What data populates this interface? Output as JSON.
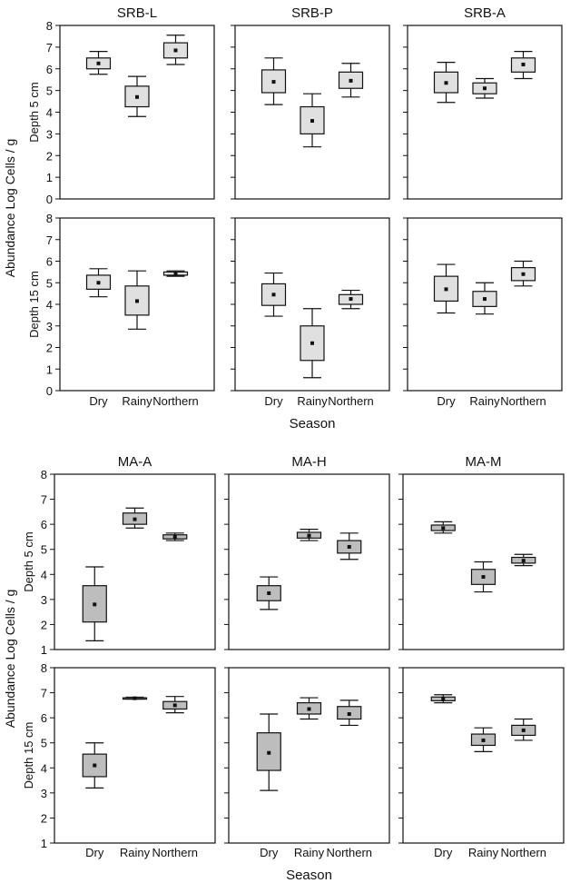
{
  "colors": {
    "box_fill_top": "#e0e0e0",
    "box_fill_bottom": "#bdbdbd",
    "stroke": "#111111",
    "background": "#ffffff"
  },
  "chart_data": [
    {
      "type": "box",
      "block": "top",
      "ylabel": "Abundance Log Cells / g",
      "xlabel": "Season",
      "ylim": [
        0,
        8
      ],
      "yticks": [
        "0",
        "1",
        "2",
        "3",
        "4",
        "5",
        "6",
        "7",
        "8"
      ],
      "categories": [
        "Dry",
        "Rainy",
        "Northern"
      ],
      "columns": [
        "SRB-L",
        "SRB-P",
        "SRB-A"
      ],
      "rows": [
        "Depth 5 cm",
        "Depth 15 cm"
      ],
      "panels": [
        {
          "title": "SRB-L",
          "row": "Depth 5 cm",
          "boxes": [
            {
              "category": "Dry",
              "whisker_low": 5.75,
              "q1": 6.0,
              "mean": 6.25,
              "q3": 6.5,
              "whisker_high": 6.8
            },
            {
              "category": "Rainy",
              "whisker_low": 3.8,
              "q1": 4.25,
              "mean": 4.7,
              "q3": 5.2,
              "whisker_high": 5.65
            },
            {
              "category": "Northern",
              "whisker_low": 6.2,
              "q1": 6.5,
              "mean": 6.85,
              "q3": 7.2,
              "whisker_high": 7.55
            }
          ]
        },
        {
          "title": "SRB-P",
          "row": "Depth 5 cm",
          "boxes": [
            {
              "category": "Dry",
              "whisker_low": 4.35,
              "q1": 4.9,
              "mean": 5.4,
              "q3": 5.95,
              "whisker_high": 6.5
            },
            {
              "category": "Rainy",
              "whisker_low": 2.4,
              "q1": 3.0,
              "mean": 3.6,
              "q3": 4.25,
              "whisker_high": 4.85
            },
            {
              "category": "Northern",
              "whisker_low": 4.7,
              "q1": 5.1,
              "mean": 5.45,
              "q3": 5.85,
              "whisker_high": 6.25
            }
          ]
        },
        {
          "title": "SRB-A",
          "row": "Depth 5 cm",
          "boxes": [
            {
              "category": "Dry",
              "whisker_low": 4.45,
              "q1": 4.9,
              "mean": 5.35,
              "q3": 5.85,
              "whisker_high": 6.3
            },
            {
              "category": "Rainy",
              "whisker_low": 4.65,
              "q1": 4.85,
              "mean": 5.1,
              "q3": 5.35,
              "whisker_high": 5.55
            },
            {
              "category": "Northern",
              "whisker_low": 5.55,
              "q1": 5.85,
              "mean": 6.2,
              "q3": 6.5,
              "whisker_high": 6.8
            }
          ]
        },
        {
          "title": "SRB-L",
          "row": "Depth 15 cm",
          "boxes": [
            {
              "category": "Dry",
              "whisker_low": 4.35,
              "q1": 4.7,
              "mean": 5.0,
              "q3": 5.35,
              "whisker_high": 5.65
            },
            {
              "category": "Rainy",
              "whisker_low": 2.85,
              "q1": 3.5,
              "mean": 4.15,
              "q3": 4.85,
              "whisker_high": 5.55
            },
            {
              "category": "Northern",
              "whisker_low": 5.3,
              "q1": 5.35,
              "mean": 5.42,
              "q3": 5.5,
              "whisker_high": 5.55
            }
          ]
        },
        {
          "title": "SRB-P",
          "row": "Depth 15 cm",
          "boxes": [
            {
              "category": "Dry",
              "whisker_low": 3.45,
              "q1": 3.95,
              "mean": 4.45,
              "q3": 4.95,
              "whisker_high": 5.45
            },
            {
              "category": "Rainy",
              "whisker_low": 0.6,
              "q1": 1.4,
              "mean": 2.2,
              "q3": 3.0,
              "whisker_high": 3.8
            },
            {
              "category": "Northern",
              "whisker_low": 3.8,
              "q1": 4.0,
              "mean": 4.25,
              "q3": 4.45,
              "whisker_high": 4.65
            }
          ]
        },
        {
          "title": "SRB-A",
          "row": "Depth 15 cm",
          "boxes": [
            {
              "category": "Dry",
              "whisker_low": 3.6,
              "q1": 4.15,
              "mean": 4.7,
              "q3": 5.3,
              "whisker_high": 5.85
            },
            {
              "category": "Rainy",
              "whisker_low": 3.55,
              "q1": 3.9,
              "mean": 4.25,
              "q3": 4.6,
              "whisker_high": 5.0
            },
            {
              "category": "Northern",
              "whisker_low": 4.85,
              "q1": 5.1,
              "mean": 5.4,
              "q3": 5.7,
              "whisker_high": 6.0
            }
          ]
        }
      ]
    },
    {
      "type": "box",
      "block": "bottom",
      "ylabel": "Abundance Log Cells / g",
      "xlabel": "Season",
      "ylim": [
        1,
        8
      ],
      "yticks": [
        "1",
        "2",
        "3",
        "4",
        "5",
        "6",
        "7",
        "8"
      ],
      "categories": [
        "Dry",
        "Rainy",
        "Northern"
      ],
      "columns": [
        "MA-A",
        "MA-H",
        "MA-M"
      ],
      "rows": [
        "Depth 5 cm",
        "Depth 15 cm"
      ],
      "panels": [
        {
          "title": "MA-A",
          "row": "Depth 5 cm",
          "boxes": [
            {
              "category": "Dry",
              "whisker_low": 1.35,
              "q1": 2.1,
              "mean": 2.8,
              "q3": 3.55,
              "whisker_high": 4.3
            },
            {
              "category": "Rainy",
              "whisker_low": 5.85,
              "q1": 6.0,
              "mean": 6.2,
              "q3": 6.45,
              "whisker_high": 6.65
            },
            {
              "category": "Northern",
              "whisker_low": 5.35,
              "q1": 5.42,
              "mean": 5.5,
              "q3": 5.58,
              "whisker_high": 5.65
            }
          ]
        },
        {
          "title": "MA-H",
          "row": "Depth 5 cm",
          "boxes": [
            {
              "category": "Dry",
              "whisker_low": 2.6,
              "q1": 2.95,
              "mean": 3.25,
              "q3": 3.55,
              "whisker_high": 3.9
            },
            {
              "category": "Rainy",
              "whisker_low": 5.35,
              "q1": 5.45,
              "mean": 5.55,
              "q3": 5.68,
              "whisker_high": 5.8
            },
            {
              "category": "Northern",
              "whisker_low": 4.6,
              "q1": 4.85,
              "mean": 5.1,
              "q3": 5.35,
              "whisker_high": 5.65
            }
          ]
        },
        {
          "title": "MA-M",
          "row": "Depth 5 cm",
          "boxes": [
            {
              "category": "Dry",
              "whisker_low": 5.65,
              "q1": 5.75,
              "mean": 5.85,
              "q3": 5.97,
              "whisker_high": 6.1
            },
            {
              "category": "Rainy",
              "whisker_low": 3.3,
              "q1": 3.6,
              "mean": 3.9,
              "q3": 4.2,
              "whisker_high": 4.5
            },
            {
              "category": "Northern",
              "whisker_low": 4.35,
              "q1": 4.45,
              "mean": 4.55,
              "q3": 4.68,
              "whisker_high": 4.8
            }
          ]
        },
        {
          "title": "MA-A",
          "row": "Depth 15 cm",
          "boxes": [
            {
              "category": "Dry",
              "whisker_low": 3.2,
              "q1": 3.65,
              "mean": 4.1,
              "q3": 4.55,
              "whisker_high": 5.0
            },
            {
              "category": "Rainy",
              "whisker_low": 6.75,
              "q1": 6.76,
              "mean": 6.78,
              "q3": 6.8,
              "whisker_high": 6.82
            },
            {
              "category": "Northern",
              "whisker_low": 6.2,
              "q1": 6.35,
              "mean": 6.5,
              "q3": 6.65,
              "whisker_high": 6.85
            }
          ]
        },
        {
          "title": "MA-H",
          "row": "Depth 15 cm",
          "boxes": [
            {
              "category": "Dry",
              "whisker_low": 3.1,
              "q1": 3.9,
              "mean": 4.6,
              "q3": 5.4,
              "whisker_high": 6.15
            },
            {
              "category": "Rainy",
              "whisker_low": 5.95,
              "q1": 6.15,
              "mean": 6.35,
              "q3": 6.6,
              "whisker_high": 6.8
            },
            {
              "category": "Northern",
              "whisker_low": 5.7,
              "q1": 5.95,
              "mean": 6.15,
              "q3": 6.45,
              "whisker_high": 6.7
            }
          ]
        },
        {
          "title": "MA-M",
          "row": "Depth 15 cm",
          "boxes": [
            {
              "category": "Dry",
              "whisker_low": 6.6,
              "q1": 6.68,
              "mean": 6.75,
              "q3": 6.83,
              "whisker_high": 6.92
            },
            {
              "category": "Rainy",
              "whisker_low": 4.65,
              "q1": 4.9,
              "mean": 5.1,
              "q3": 5.35,
              "whisker_high": 5.6
            },
            {
              "category": "Northern",
              "whisker_low": 5.1,
              "q1": 5.3,
              "mean": 5.5,
              "q3": 5.7,
              "whisker_high": 5.95
            }
          ]
        }
      ]
    }
  ]
}
